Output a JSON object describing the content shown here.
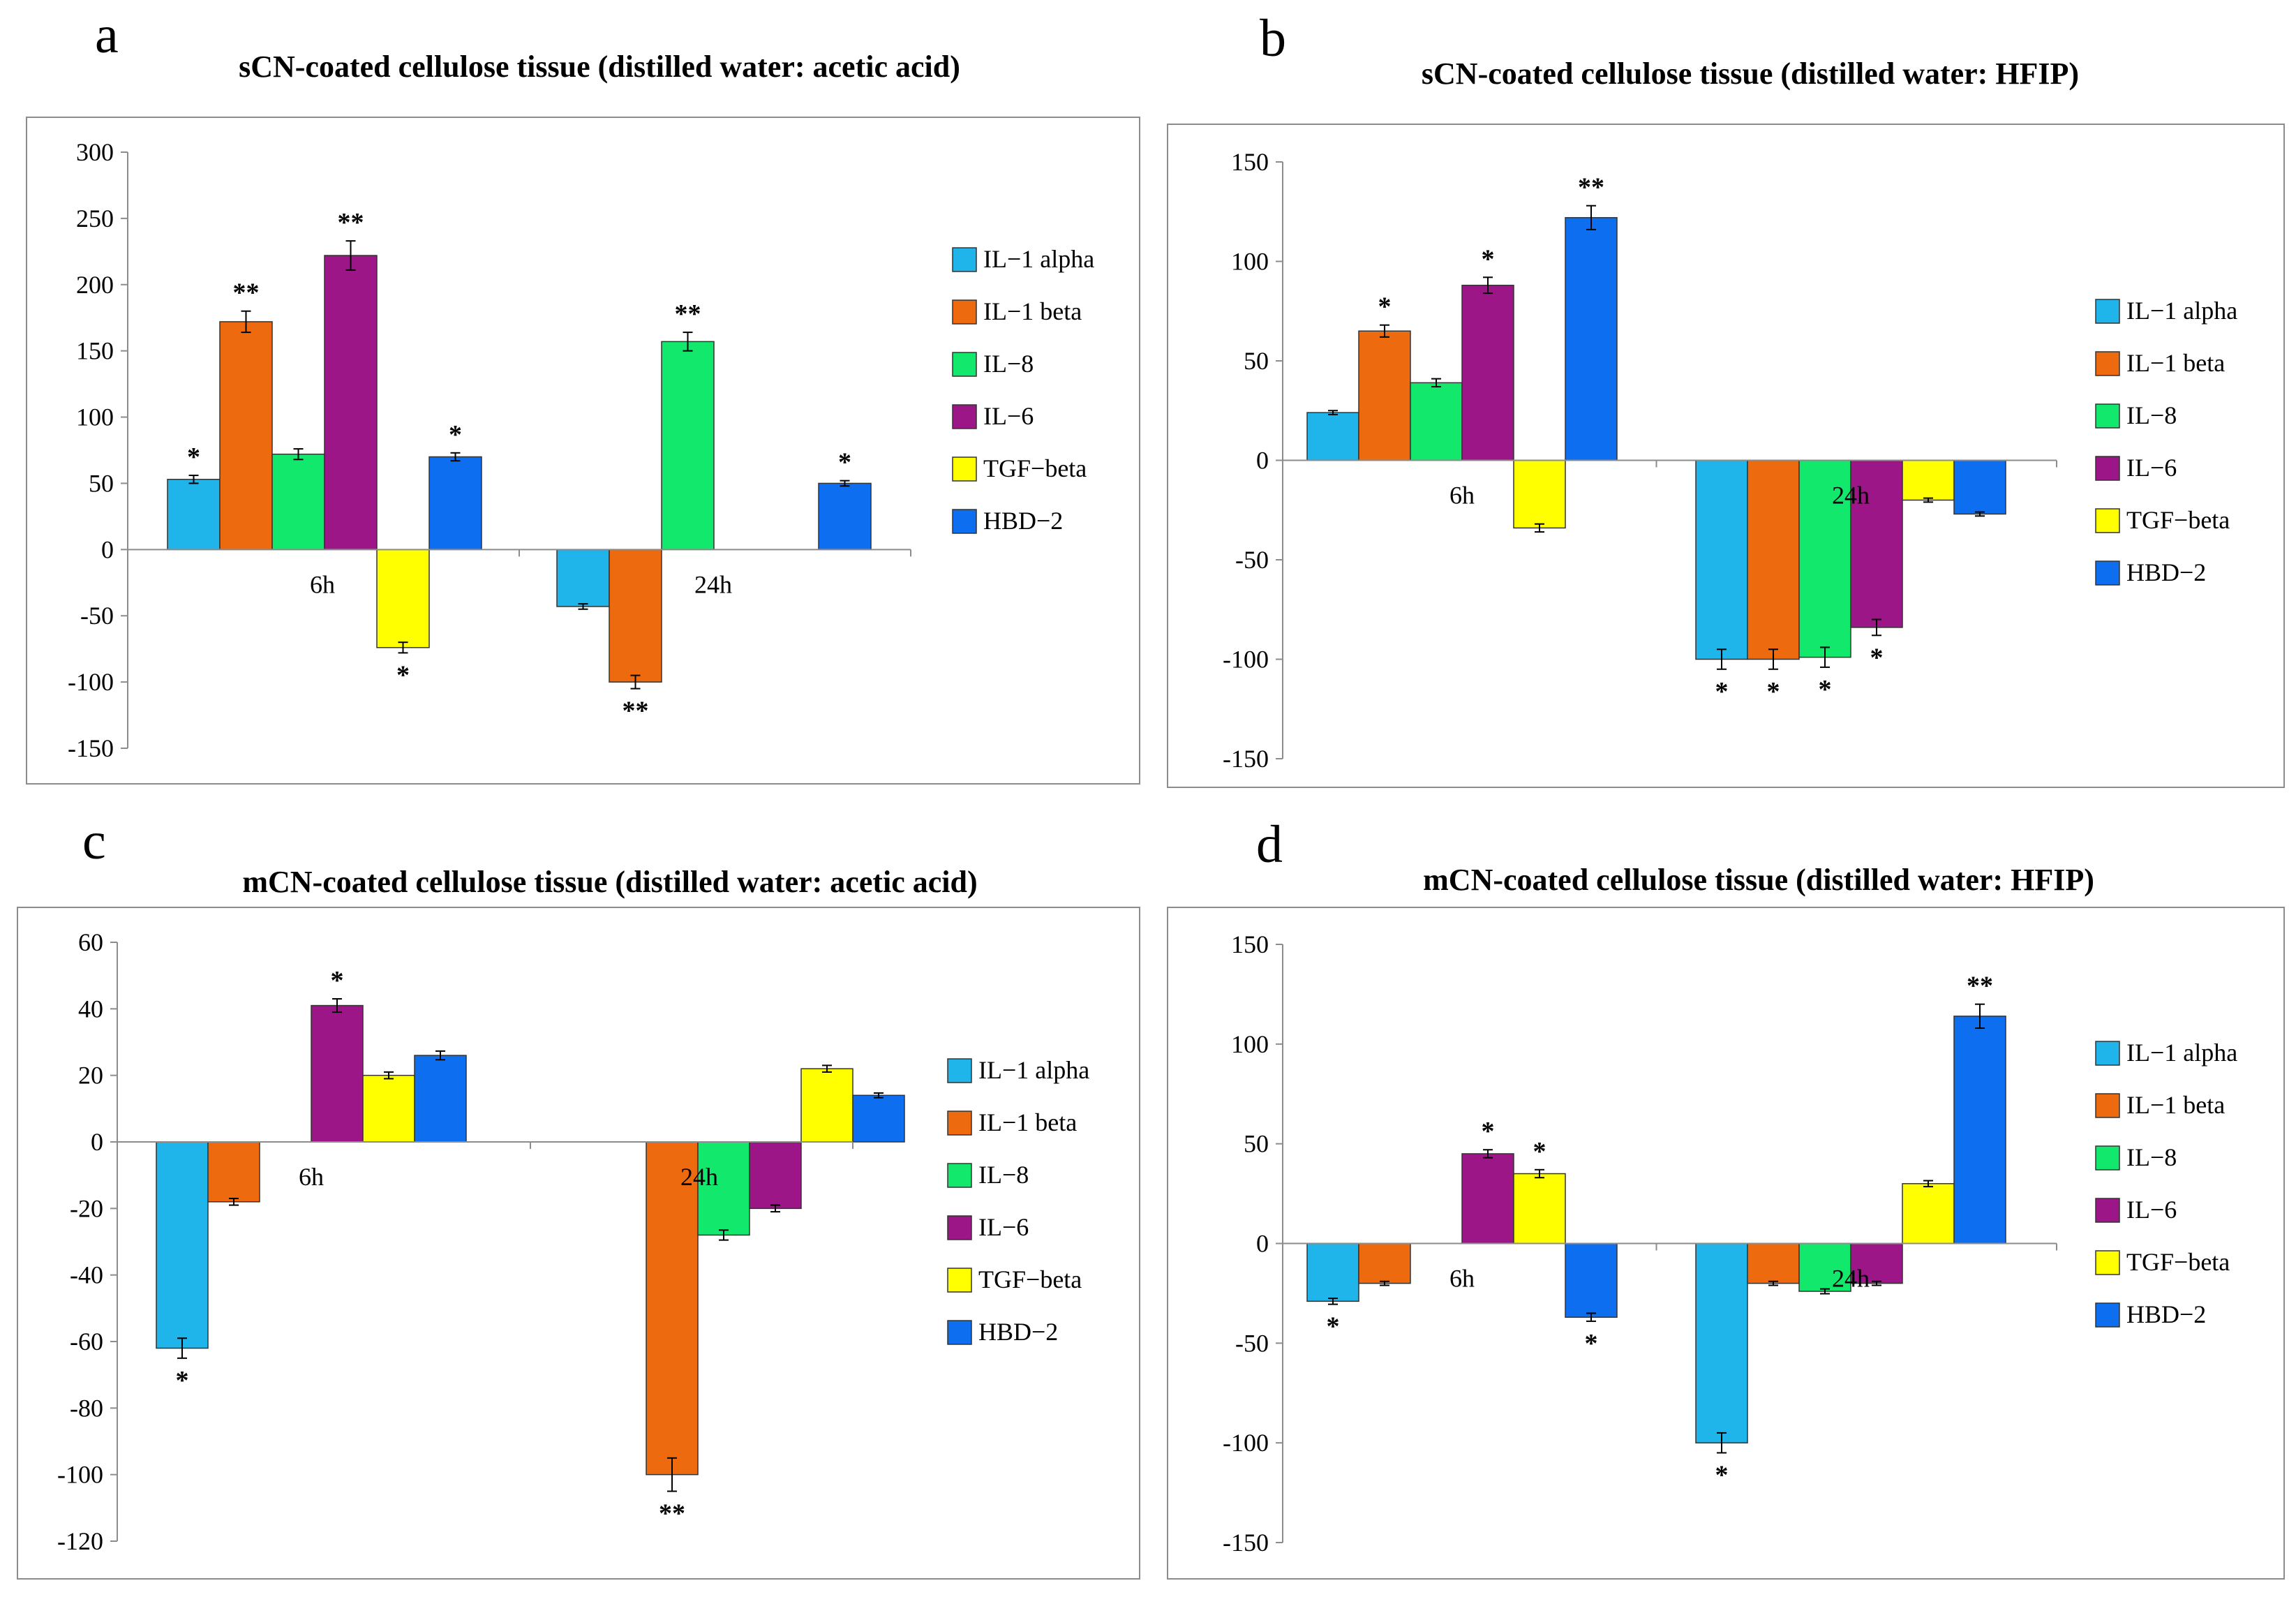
{
  "colors": {
    "IL-1 alpha": "#1FB4EA",
    "IL-1 beta": "#ED6B0E",
    "IL-8": "#12E86B",
    "IL-6": "#9C1687",
    "TGF-beta": "#FFFF00",
    "HBD-2": "#0E6EF0"
  },
  "chart_data": [
    {
      "panel": "a",
      "type": "bar",
      "title": "sCN-coated cellulose tissue (distilled water: acetic acid)",
      "categories": [
        "6h",
        "24h"
      ],
      "ylim": [
        -150,
        300
      ],
      "yticks": [
        300,
        250,
        200,
        150,
        100,
        50,
        0,
        -50,
        -100,
        -150
      ],
      "series": [
        {
          "name": "IL−1 alpha",
          "values": [
            53,
            -43
          ],
          "errors": [
            3,
            2
          ],
          "sig": [
            "*",
            ""
          ]
        },
        {
          "name": "IL−1 beta",
          "values": [
            172,
            -100
          ],
          "errors": [
            8,
            5
          ],
          "sig": [
            "**",
            "**"
          ]
        },
        {
          "name": "IL−8",
          "values": [
            72,
            157
          ],
          "errors": [
            4,
            7
          ],
          "sig": [
            "",
            "**"
          ]
        },
        {
          "name": "IL−6",
          "values": [
            222,
            0
          ],
          "errors": [
            11,
            0
          ],
          "sig": [
            "**",
            ""
          ]
        },
        {
          "name": "TGF−beta",
          "values": [
            -74,
            0
          ],
          "errors": [
            4,
            0
          ],
          "sig": [
            "*",
            ""
          ]
        },
        {
          "name": "HBD−2",
          "values": [
            70,
            50
          ],
          "errors": [
            3,
            2
          ],
          "sig": [
            "*",
            "*"
          ]
        }
      ]
    },
    {
      "panel": "b",
      "type": "bar",
      "title": "sCN-coated cellulose tissue (distilled water: HFIP)",
      "categories": [
        "6h",
        "24h"
      ],
      "ylim": [
        -150,
        150
      ],
      "yticks": [
        150,
        100,
        50,
        0,
        -50,
        -100,
        -150
      ],
      "series": [
        {
          "name": "IL−1 alpha",
          "values": [
            24,
            -100
          ],
          "errors": [
            1,
            5
          ],
          "sig": [
            "",
            "*"
          ]
        },
        {
          "name": "IL−1 beta",
          "values": [
            65,
            -100
          ],
          "errors": [
            3,
            5
          ],
          "sig": [
            "*",
            "*"
          ]
        },
        {
          "name": "IL−8",
          "values": [
            39,
            -99
          ],
          "errors": [
            2,
            5
          ],
          "sig": [
            "",
            "*"
          ]
        },
        {
          "name": "IL−6",
          "values": [
            88,
            -84
          ],
          "errors": [
            4,
            4
          ],
          "sig": [
            "*",
            "*"
          ]
        },
        {
          "name": "TGF−beta",
          "values": [
            -34,
            -20
          ],
          "errors": [
            2,
            1
          ],
          "sig": [
            "",
            ""
          ]
        },
        {
          "name": "HBD−2",
          "values": [
            122,
            -27
          ],
          "errors": [
            6,
            1
          ],
          "sig": [
            "**",
            ""
          ]
        }
      ]
    },
    {
      "panel": "c",
      "type": "bar",
      "title": "mCN-coated cellulose tissue (distilled water: acetic acid)",
      "categories": [
        "6h",
        "24h"
      ],
      "ylim": [
        -120,
        60
      ],
      "yticks": [
        60,
        40,
        20,
        0,
        -20,
        -40,
        -60,
        -80,
        -100,
        -120
      ],
      "series": [
        {
          "name": "IL−1 alpha",
          "values": [
            -62,
            0
          ],
          "errors": [
            3,
            0
          ],
          "sig": [
            "*",
            ""
          ]
        },
        {
          "name": "IL−1 beta",
          "values": [
            -18,
            -100
          ],
          "errors": [
            1,
            5
          ],
          "sig": [
            "",
            "**"
          ]
        },
        {
          "name": "IL−8",
          "values": [
            0,
            -28
          ],
          "errors": [
            0,
            1.5
          ],
          "sig": [
            "",
            ""
          ]
        },
        {
          "name": "IL−6",
          "values": [
            41,
            -20
          ],
          "errors": [
            2,
            1
          ],
          "sig": [
            "*",
            ""
          ]
        },
        {
          "name": "TGF−beta",
          "values": [
            20,
            22
          ],
          "errors": [
            1,
            1
          ],
          "sig": [
            "",
            ""
          ]
        },
        {
          "name": "HBD−2",
          "values": [
            26,
            14
          ],
          "errors": [
            1.3,
            0.7
          ],
          "sig": [
            "",
            ""
          ]
        }
      ]
    },
    {
      "panel": "d",
      "type": "bar",
      "title": "mCN-coated cellulose tissue (distilled water: HFIP)",
      "categories": [
        "6h",
        "24h"
      ],
      "ylim": [
        -150,
        150
      ],
      "yticks": [
        150,
        100,
        50,
        0,
        -50,
        -100,
        -150
      ],
      "series": [
        {
          "name": "IL−1 alpha",
          "values": [
            -29,
            -100
          ],
          "errors": [
            1.5,
            5
          ],
          "sig": [
            "*",
            "*"
          ]
        },
        {
          "name": "IL−1 beta",
          "values": [
            -20,
            -20
          ],
          "errors": [
            1,
            1
          ],
          "sig": [
            "",
            ""
          ]
        },
        {
          "name": "IL−8",
          "values": [
            0,
            -24
          ],
          "errors": [
            0,
            1.2
          ],
          "sig": [
            "",
            ""
          ]
        },
        {
          "name": "IL−6",
          "values": [
            45,
            -20
          ],
          "errors": [
            2,
            1
          ],
          "sig": [
            "*",
            ""
          ]
        },
        {
          "name": "TGF−beta",
          "values": [
            35,
            30
          ],
          "errors": [
            2,
            1.5
          ],
          "sig": [
            "*",
            ""
          ]
        },
        {
          "name": "HBD−2",
          "values": [
            -37,
            114
          ],
          "errors": [
            2,
            6
          ],
          "sig": [
            "*",
            "**"
          ]
        }
      ]
    }
  ]
}
